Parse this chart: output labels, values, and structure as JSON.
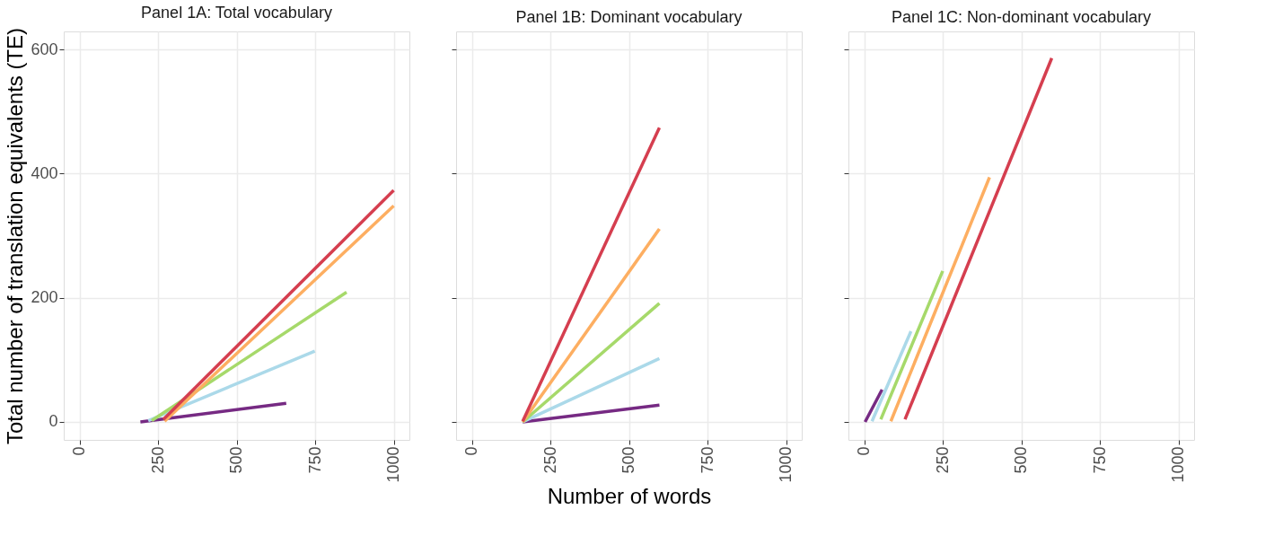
{
  "chart_data": [
    {
      "type": "line",
      "title": "Panel 1A: Total vocabulary",
      "ylabel": "Total number of translation equivalents (TE)",
      "xlim": [
        -50,
        1050
      ],
      "ylim": [
        -29,
        629
      ],
      "xticks": [
        0,
        250,
        500,
        750,
        1000
      ],
      "yticks": [
        0,
        200,
        400,
        600
      ],
      "grid": true,
      "line_style": "solid",
      "series": [
        {
          "color": "#762a83",
          "x": [
            194,
            658
          ],
          "values": [
            0,
            30
          ]
        },
        {
          "color": "#abd9e9",
          "x": [
            219,
            749
          ],
          "values": [
            2,
            114
          ]
        },
        {
          "color": "#a6d96a",
          "x": [
            230,
            850
          ],
          "values": [
            2,
            209
          ]
        },
        {
          "color": "#fdae61",
          "x": [
            271,
            1000
          ],
          "values": [
            1,
            348
          ]
        },
        {
          "color": "#d53e4f",
          "x": [
            267,
            1000
          ],
          "values": [
            4,
            373
          ]
        }
      ]
    },
    {
      "type": "line",
      "title": "Panel 1B: Dominant vocabulary",
      "xlabel": "Number of words",
      "xlim": [
        -50,
        1050
      ],
      "ylim": [
        -29,
        629
      ],
      "xticks": [
        0,
        250,
        500,
        750,
        1000
      ],
      "yticks": [
        0,
        200,
        400,
        600
      ],
      "grid": true,
      "tick_labels": "x",
      "line_style": "solid",
      "series": [
        {
          "color": "#762a83",
          "x": [
            162,
            597
          ],
          "values": [
            0,
            27
          ]
        },
        {
          "color": "#abd9e9",
          "x": [
            162,
            597
          ],
          "values": [
            0,
            102
          ]
        },
        {
          "color": "#a6d96a",
          "x": [
            162,
            597
          ],
          "values": [
            0,
            191
          ]
        },
        {
          "color": "#fdae61",
          "x": [
            162,
            597
          ],
          "values": [
            0,
            311
          ]
        },
        {
          "color": "#d53e4f",
          "x": [
            162,
            597
          ],
          "values": [
            1,
            474
          ]
        }
      ]
    },
    {
      "type": "line",
      "title": "Panel 1C: Non-dominant vocabulary",
      "xlim": [
        -50,
        1050
      ],
      "ylim": [
        -29,
        629
      ],
      "xticks": [
        0,
        250,
        500,
        750,
        1000
      ],
      "yticks": [
        0,
        200,
        400,
        600
      ],
      "grid": true,
      "tick_labels": "x",
      "line_style": "solid",
      "series": [
        {
          "color": "#762a83",
          "x": [
            3,
            57
          ],
          "values": [
            0,
            52
          ]
        },
        {
          "color": "#abd9e9",
          "x": [
            25,
            149
          ],
          "values": [
            1,
            146
          ]
        },
        {
          "color": "#a6d96a",
          "x": [
            53,
            250
          ],
          "values": [
            4,
            243
          ]
        },
        {
          "color": "#fdae61",
          "x": [
            85,
            399
          ],
          "values": [
            1,
            394
          ]
        },
        {
          "color": "#d53e4f",
          "x": [
            130,
            597
          ],
          "values": [
            4,
            586
          ]
        }
      ]
    }
  ]
}
